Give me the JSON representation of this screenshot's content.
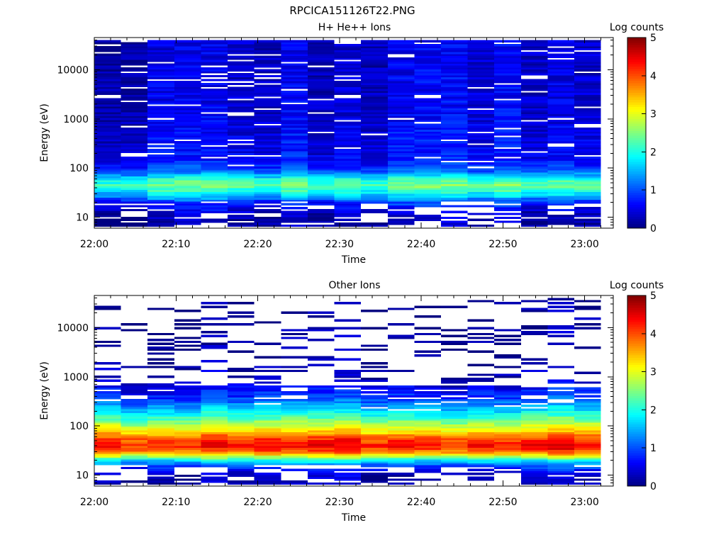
{
  "file_title": "RPCICA151126T22.PNG",
  "chart_data": [
    {
      "type": "heatmap",
      "title": "H+ He++ Ions",
      "xlabel": "Time",
      "ylabel": "Energy (eV)",
      "y_scale": "log",
      "ylim": [
        6,
        45000
      ],
      "x_ticks": [
        "22:00",
        "22:10",
        "22:20",
        "22:30",
        "22:40",
        "22:50",
        "23:00"
      ],
      "y_ticks": [
        "10",
        "100",
        "1000",
        "10000"
      ],
      "colorbar": {
        "label": "Log counts",
        "range": [
          0,
          5
        ],
        "ticks": [
          "0",
          "1",
          "2",
          "3",
          "4",
          "5"
        ]
      },
      "time_start": "22:00",
      "time_end": "23:02",
      "time_columns": 19,
      "energy_channels": 96,
      "grid": false,
      "colormap": "jet",
      "profile_log_counts": [
        {
          "energy_eV": 8,
          "value": 0.2
        },
        {
          "energy_eV": 12,
          "value": 0.3
        },
        {
          "energy_eV": 20,
          "value": 0.8
        },
        {
          "energy_eV": 28,
          "value": 1.6
        },
        {
          "energy_eV": 35,
          "value": 2.0
        },
        {
          "energy_eV": 45,
          "value": 2.4
        },
        {
          "energy_eV": 55,
          "value": 2.2
        },
        {
          "energy_eV": 70,
          "value": 1.6
        },
        {
          "energy_eV": 90,
          "value": 1.0
        },
        {
          "energy_eV": 150,
          "value": 0.6
        },
        {
          "energy_eV": 1000,
          "value": 0.45
        },
        {
          "energy_eV": 10000,
          "value": 0.4
        },
        {
          "energy_eV": 40000,
          "value": 0.4
        }
      ]
    },
    {
      "type": "heatmap",
      "title": "Other Ions",
      "xlabel": "Time",
      "ylabel": "Energy (eV)",
      "y_scale": "log",
      "ylim": [
        6,
        45000
      ],
      "x_ticks": [
        "22:00",
        "22:10",
        "22:20",
        "22:30",
        "22:40",
        "22:50",
        "23:00"
      ],
      "y_ticks": [
        "10",
        "100",
        "1000",
        "10000"
      ],
      "colorbar": {
        "label": "Log counts",
        "range": [
          0,
          5
        ],
        "ticks": [
          "0",
          "1",
          "2",
          "3",
          "4",
          "5"
        ]
      },
      "time_start": "22:00",
      "time_end": "23:02",
      "time_columns": 19,
      "energy_channels": 96,
      "grid": false,
      "colormap": "jet",
      "profile_log_counts": [
        {
          "energy_eV": 10,
          "value": 0.3
        },
        {
          "energy_eV": 15,
          "value": 1.0
        },
        {
          "energy_eV": 20,
          "value": 1.8
        },
        {
          "energy_eV": 25,
          "value": 3.0
        },
        {
          "energy_eV": 30,
          "value": 3.9
        },
        {
          "energy_eV": 40,
          "value": 4.4
        },
        {
          "energy_eV": 55,
          "value": 4.1
        },
        {
          "energy_eV": 80,
          "value": 3.3
        },
        {
          "energy_eV": 120,
          "value": 2.6
        },
        {
          "energy_eV": 200,
          "value": 1.8
        },
        {
          "energy_eV": 400,
          "value": 0.9
        },
        {
          "energy_eV": 1000,
          "value": 0.3
        },
        {
          "energy_eV": 3000,
          "value": 0.15
        },
        {
          "energy_eV": 40000,
          "value": 0.1
        }
      ]
    }
  ]
}
